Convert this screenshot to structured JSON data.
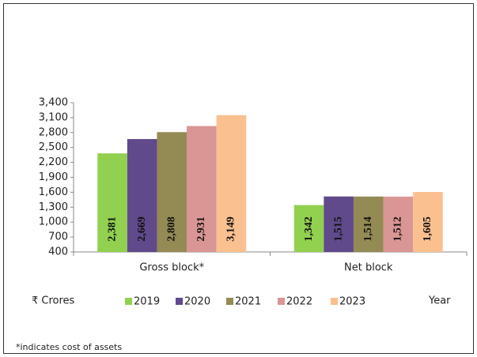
{
  "chart_data": {
    "type": "bar",
    "categories": [
      "Gross block*",
      "Net block"
    ],
    "series": [
      {
        "name": "2019",
        "color": "#92d050",
        "values": [
          2381,
          1342
        ],
        "value_labels": [
          "2,381",
          "1,342"
        ]
      },
      {
        "name": "2020",
        "color": "#604a8b",
        "values": [
          2669,
          1515
        ],
        "value_labels": [
          "2,669",
          "1,515"
        ]
      },
      {
        "name": "2021",
        "color": "#948a54",
        "values": [
          2808,
          1514
        ],
        "value_labels": [
          "2,808",
          "1,514"
        ]
      },
      {
        "name": "2022",
        "color": "#d99694",
        "values": [
          2931,
          1512
        ],
        "value_labels": [
          "2,931",
          "1,512"
        ]
      },
      {
        "name": "2023",
        "color": "#fac090",
        "values": [
          3149,
          1605
        ],
        "value_labels": [
          "3,149",
          "1,605"
        ]
      }
    ],
    "ylim": [
      400,
      3400
    ],
    "yticks": [
      {
        "value": 400,
        "label": "400"
      },
      {
        "value": 700,
        "label": "700"
      },
      {
        "value": 1000,
        "label": "1,000"
      },
      {
        "value": 1300,
        "label": "1,300"
      },
      {
        "value": 1600,
        "label": "1,600"
      },
      {
        "value": 1900,
        "label": "1,900"
      },
      {
        "value": 2200,
        "label": "2,200"
      },
      {
        "value": 2500,
        "label": "2,500"
      },
      {
        "value": 2800,
        "label": "2,800"
      },
      {
        "value": 3100,
        "label": "3,100"
      },
      {
        "value": 3400,
        "label": "3,400"
      }
    ],
    "y_unit_label": "₹ Crores",
    "x_label": "Year",
    "footnote": "*indicates cost of assets",
    "legend": "bottom"
  }
}
